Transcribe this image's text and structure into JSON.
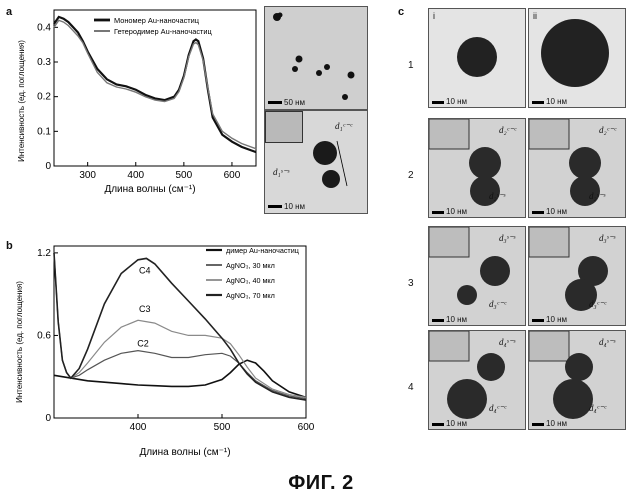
{
  "figure": {
    "caption": "ФИГ. 2",
    "panel_labels": {
      "a": "a",
      "b": "b",
      "c": "c"
    }
  },
  "panel_a": {
    "ylabel": "Интенсивность (ед. поглощения)",
    "xlabel": "Длина волны (см⁻¹)",
    "legend": [
      "Мономер Au-наночастиц",
      "Гетеродимер Au-наночастиц"
    ],
    "tem_top": {
      "scalebar": "50 нм"
    },
    "tem_bottom": {
      "scalebar": "10 нм",
      "label_cc": "d₁ᶜ⁻ᶜ",
      "label_ss": "d₁ˢ⁻ˢ"
    }
  },
  "panel_b": {
    "ylabel": "Интенсивность (ед. поглощения)",
    "xlabel": "Длина волны (см⁻¹)",
    "legend": [
      "димер Au-наночастиц",
      "AgNO₃, 30 мкл",
      "AgNO₃, 40 мкл",
      "AgNO₃, 70 мкл"
    ],
    "curve_labels": [
      "C4",
      "C3",
      "C2"
    ]
  },
  "panel_c": {
    "columns": [
      "i",
      "ii"
    ],
    "rows": [
      {
        "num": "1",
        "i": {
          "scalebar": "10 нм",
          "label1": "",
          "label2": ""
        },
        "ii": {
          "scalebar": "10 нм",
          "label1": "",
          "label2": ""
        }
      },
      {
        "num": "2",
        "i": {
          "scalebar": "10 нм",
          "label1": "d₂ᶜ⁻ᶜ",
          "label2": "d₂ˢ⁻ˢ"
        },
        "ii": {
          "scalebar": "10 нм",
          "label1": "d₂ᶜ⁻ᶜ",
          "label2": "d₂ˢ⁻ˢ"
        }
      },
      {
        "num": "3",
        "i": {
          "scalebar": "10 нм",
          "label1": "d₃ˢ⁻ˢ",
          "label2": "d₃ᶜ⁻ᶜ"
        },
        "ii": {
          "scalebar": "10 нм",
          "label1": "d₃ˢ⁻ˢ",
          "label2": "d₃ᶜ⁻ᶜ"
        }
      },
      {
        "num": "4",
        "i": {
          "scalebar": "10 нм",
          "label1": "d₄ˢ⁻ˢ",
          "label2": "d₄ᶜ⁻ᶜ"
        },
        "ii": {
          "scalebar": "10 нм",
          "label1": "d₄ˢ⁻ˢ",
          "label2": "d₄ᶜ⁻ᶜ"
        }
      }
    ]
  },
  "chart_data": [
    {
      "type": "line",
      "panel": "a",
      "xlabel": "Длина волны (см⁻¹)",
      "ylabel": "Интенсивность (ед. поглощения)",
      "xlim": [
        230,
        650
      ],
      "ylim": [
        0,
        0.45
      ],
      "xticks": [
        300,
        400,
        500,
        600
      ],
      "yticks": [
        0,
        0.1,
        0.2,
        0.3,
        0.4
      ],
      "legend_position": "top-right",
      "series": [
        {
          "name": "Мономер Au-наночастиц",
          "color": "#111111",
          "width": 2.2,
          "x": [
            230,
            240,
            250,
            260,
            270,
            280,
            290,
            300,
            320,
            340,
            360,
            380,
            400,
            420,
            440,
            460,
            480,
            490,
            500,
            510,
            520,
            525,
            530,
            540,
            550,
            560,
            580,
            600,
            620,
            650
          ],
          "y": [
            0.41,
            0.43,
            0.425,
            0.415,
            0.4,
            0.385,
            0.36,
            0.33,
            0.28,
            0.25,
            0.235,
            0.23,
            0.22,
            0.205,
            0.195,
            0.19,
            0.2,
            0.22,
            0.26,
            0.32,
            0.36,
            0.365,
            0.36,
            0.31,
            0.22,
            0.14,
            0.09,
            0.07,
            0.055,
            0.04
          ]
        },
        {
          "name": "Гетеродимер Au-наночастиц",
          "color": "#777777",
          "width": 1.4,
          "x": [
            230,
            240,
            250,
            260,
            270,
            280,
            290,
            300,
            320,
            340,
            360,
            380,
            400,
            420,
            440,
            460,
            480,
            490,
            500,
            510,
            520,
            525,
            530,
            540,
            550,
            560,
            580,
            600,
            620,
            650
          ],
          "y": [
            0.4,
            0.42,
            0.415,
            0.405,
            0.39,
            0.375,
            0.355,
            0.325,
            0.27,
            0.24,
            0.228,
            0.222,
            0.213,
            0.2,
            0.19,
            0.186,
            0.195,
            0.215,
            0.255,
            0.315,
            0.352,
            0.356,
            0.35,
            0.305,
            0.225,
            0.15,
            0.1,
            0.08,
            0.065,
            0.05
          ]
        }
      ]
    },
    {
      "type": "line",
      "panel": "b",
      "xlabel": "Длина волны (см⁻¹)",
      "ylabel": "Интенсивность (ед. поглощения)",
      "xlim": [
        300,
        600
      ],
      "ylim": [
        0,
        1.25
      ],
      "xticks": [
        400,
        500,
        600
      ],
      "yticks": [
        0,
        0.6,
        1.2
      ],
      "legend_position": "top-right",
      "series": [
        {
          "name": "димер Au-наночастиц",
          "color": "#111111",
          "width": 1.6,
          "x": [
            300,
            320,
            340,
            360,
            380,
            400,
            420,
            440,
            460,
            480,
            500,
            510,
            520,
            530,
            540,
            550,
            560,
            580,
            600
          ],
          "y": [
            0.31,
            0.29,
            0.27,
            0.26,
            0.25,
            0.24,
            0.235,
            0.23,
            0.23,
            0.24,
            0.28,
            0.33,
            0.39,
            0.42,
            0.4,
            0.34,
            0.27,
            0.19,
            0.15
          ]
        },
        {
          "name": "AgNO₃, 30 мкл",
          "color": "#555555",
          "width": 1.2,
          "x": [
            300,
            305,
            310,
            315,
            320,
            330,
            340,
            360,
            380,
            400,
            420,
            440,
            460,
            480,
            500,
            510,
            520,
            530,
            540,
            560,
            580,
            600
          ],
          "y": [
            1.2,
            0.7,
            0.42,
            0.33,
            0.29,
            0.31,
            0.35,
            0.42,
            0.47,
            0.49,
            0.47,
            0.44,
            0.44,
            0.46,
            0.47,
            0.45,
            0.4,
            0.33,
            0.27,
            0.2,
            0.16,
            0.14
          ]
        },
        {
          "name": "AgNO₃, 40 мкл",
          "color": "#8a8a8a",
          "width": 1.2,
          "x": [
            300,
            305,
            310,
            315,
            320,
            330,
            340,
            360,
            380,
            400,
            420,
            440,
            460,
            480,
            500,
            510,
            520,
            530,
            540,
            560,
            580,
            600
          ],
          "y": [
            1.2,
            0.7,
            0.42,
            0.33,
            0.29,
            0.33,
            0.4,
            0.55,
            0.66,
            0.71,
            0.69,
            0.63,
            0.6,
            0.6,
            0.58,
            0.54,
            0.46,
            0.37,
            0.29,
            0.21,
            0.17,
            0.15
          ]
        },
        {
          "name": "AgNO₃, 70 мкл",
          "color": "#222222",
          "width": 1.6,
          "x": [
            300,
            305,
            310,
            315,
            320,
            330,
            340,
            360,
            380,
            400,
            410,
            420,
            440,
            460,
            480,
            500,
            510,
            520,
            530,
            540,
            560,
            580,
            600
          ],
          "y": [
            1.2,
            0.7,
            0.42,
            0.33,
            0.29,
            0.36,
            0.5,
            0.83,
            1.05,
            1.15,
            1.16,
            1.12,
            0.98,
            0.85,
            0.72,
            0.58,
            0.5,
            0.4,
            0.32,
            0.26,
            0.19,
            0.15,
            0.13
          ]
        }
      ]
    }
  ]
}
